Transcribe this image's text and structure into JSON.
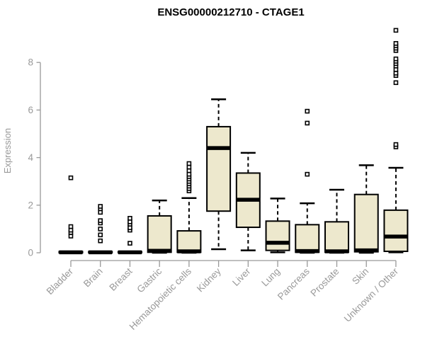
{
  "chart_data": {
    "type": "boxplot",
    "title": "ENSG00000212710 - CTAGE1",
    "ylabel": "Expression",
    "xlabel": "",
    "ylim": [
      0,
      9.6
    ],
    "yticks": [
      0,
      2,
      4,
      6,
      8
    ],
    "grid": false,
    "legend": "none",
    "categories": [
      "Bladder",
      "Brain",
      "Breast",
      "Gastric",
      "Hematopoietic cells",
      "Kidney",
      "Liver",
      "Lung",
      "Pancreas",
      "Prostate",
      "Skin",
      "Unknown / Other"
    ],
    "series": [
      {
        "category": "Bladder",
        "q1": 0,
        "median": 0.02,
        "q3": 0.05,
        "whisker_low": 0,
        "whisker_high": 0.05,
        "outliers": [
          0.7,
          0.85,
          0.95,
          1.1,
          3.15
        ]
      },
      {
        "category": "Brain",
        "q1": 0,
        "median": 0.02,
        "q3": 0.05,
        "whisker_low": 0,
        "whisker_high": 0.05,
        "outliers": [
          0.5,
          0.75,
          1.0,
          1.25,
          1.35,
          1.7,
          1.85,
          1.95
        ]
      },
      {
        "category": "Breast",
        "q1": 0,
        "median": 0.02,
        "q3": 0.05,
        "whisker_low": 0,
        "whisker_high": 0.05,
        "outliers": [
          0.4,
          0.95,
          1.05,
          1.2,
          1.3,
          1.45
        ]
      },
      {
        "category": "Gastric",
        "q1": 0.02,
        "median": 0.08,
        "q3": 1.55,
        "whisker_low": 0,
        "whisker_high": 2.2,
        "outliers": []
      },
      {
        "category": "Hematopoietic cells",
        "q1": 0.02,
        "median": 0.06,
        "q3": 0.92,
        "whisker_low": 0,
        "whisker_high": 2.3,
        "outliers": [
          2.6,
          2.7,
          2.8,
          2.9,
          3.0,
          3.1,
          3.2,
          3.3,
          3.45,
          3.6,
          3.75
        ]
      },
      {
        "category": "Kidney",
        "q1": 1.75,
        "median": 4.4,
        "q3": 5.3,
        "whisker_low": 0.15,
        "whisker_high": 6.45,
        "outliers": []
      },
      {
        "category": "Liver",
        "q1": 1.07,
        "median": 2.23,
        "q3": 3.35,
        "whisker_low": 0.1,
        "whisker_high": 4.2,
        "outliers": []
      },
      {
        "category": "Lung",
        "q1": 0.1,
        "median": 0.42,
        "q3": 1.33,
        "whisker_low": 0.02,
        "whisker_high": 2.28,
        "outliers": []
      },
      {
        "category": "Pancreas",
        "q1": 0.02,
        "median": 0.07,
        "q3": 1.18,
        "whisker_low": 0,
        "whisker_high": 2.08,
        "outliers": [
          3.3,
          5.45,
          5.95
        ]
      },
      {
        "category": "Prostate",
        "q1": 0.02,
        "median": 0.06,
        "q3": 1.3,
        "whisker_low": 0,
        "whisker_high": 2.65,
        "outliers": []
      },
      {
        "category": "Skin",
        "q1": 0.04,
        "median": 0.1,
        "q3": 2.45,
        "whisker_low": 0,
        "whisker_high": 3.68,
        "outliers": []
      },
      {
        "category": "Unknown / Other",
        "q1": 0.06,
        "median": 0.68,
        "q3": 1.79,
        "whisker_low": 0.02,
        "whisker_high": 3.57,
        "outliers": [
          4.45,
          4.55,
          7.15,
          7.45,
          7.55,
          7.7,
          7.85,
          7.95,
          8.05,
          8.15,
          8.5,
          8.6,
          8.7,
          8.8,
          9.35
        ]
      }
    ],
    "colors": {
      "box_fill": "#EDE8CD",
      "box_stroke": "#000000",
      "median": "#000000",
      "whisker": "#000000",
      "outlier_stroke": "#000000",
      "outlier_fill": "#FFFFFF",
      "axis": "#999999",
      "tick_label": "#999999",
      "title": "#000000"
    }
  }
}
